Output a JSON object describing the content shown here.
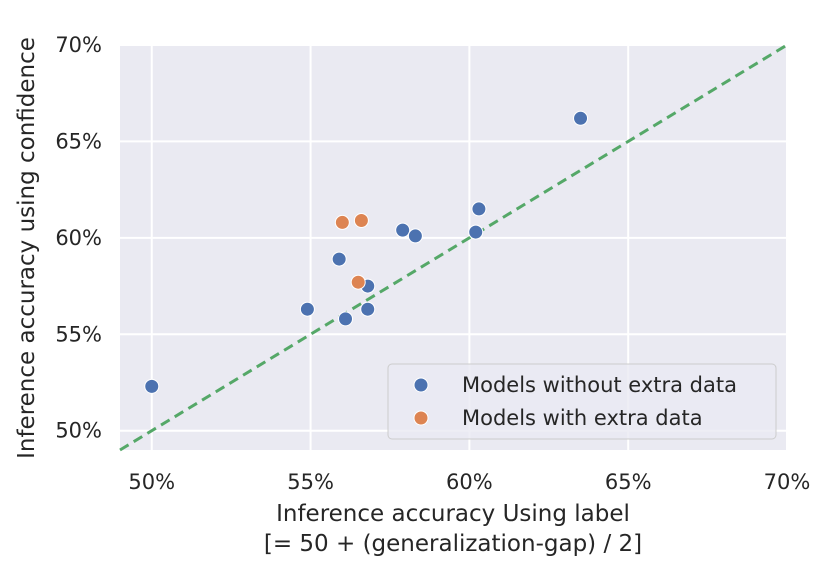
{
  "chart_data": {
    "type": "scatter",
    "xlabel_line1": "Inference accuracy Using label",
    "xlabel_line2": "[= 50 + (generalization-gap) / 2]",
    "ylabel": "Inference accuracy using confidence",
    "xlim": [
      49,
      70
    ],
    "ylim": [
      49,
      70
    ],
    "x_ticks": [
      50,
      55,
      60,
      65,
      70
    ],
    "y_ticks": [
      50,
      55,
      60,
      65,
      70
    ],
    "x_tick_labels": [
      "50%",
      "55%",
      "60%",
      "65%",
      "70%"
    ],
    "y_tick_labels": [
      "50%",
      "55%",
      "60%",
      "65%",
      "70%"
    ],
    "grid": true,
    "background": "#eaeaf2",
    "legend_position": "lower-right",
    "reference_line": {
      "style": "dashed",
      "color": "#55a868",
      "from": [
        49,
        49
      ],
      "to": [
        70,
        70
      ]
    },
    "series": [
      {
        "name": "Models without extra data",
        "color": "#4c72b0",
        "points": [
          {
            "x": 50.0,
            "y": 52.3
          },
          {
            "x": 54.9,
            "y": 56.3
          },
          {
            "x": 55.9,
            "y": 58.9
          },
          {
            "x": 56.1,
            "y": 55.8
          },
          {
            "x": 56.8,
            "y": 57.5
          },
          {
            "x": 56.8,
            "y": 56.3
          },
          {
            "x": 57.9,
            "y": 60.4
          },
          {
            "x": 58.3,
            "y": 60.1
          },
          {
            "x": 60.2,
            "y": 60.3
          },
          {
            "x": 60.3,
            "y": 61.5
          },
          {
            "x": 63.5,
            "y": 66.2
          }
        ]
      },
      {
        "name": "Models with extra data",
        "color": "#dd8452",
        "points": [
          {
            "x": 56.0,
            "y": 60.8
          },
          {
            "x": 56.6,
            "y": 60.9
          },
          {
            "x": 56.5,
            "y": 57.7
          }
        ]
      }
    ]
  }
}
